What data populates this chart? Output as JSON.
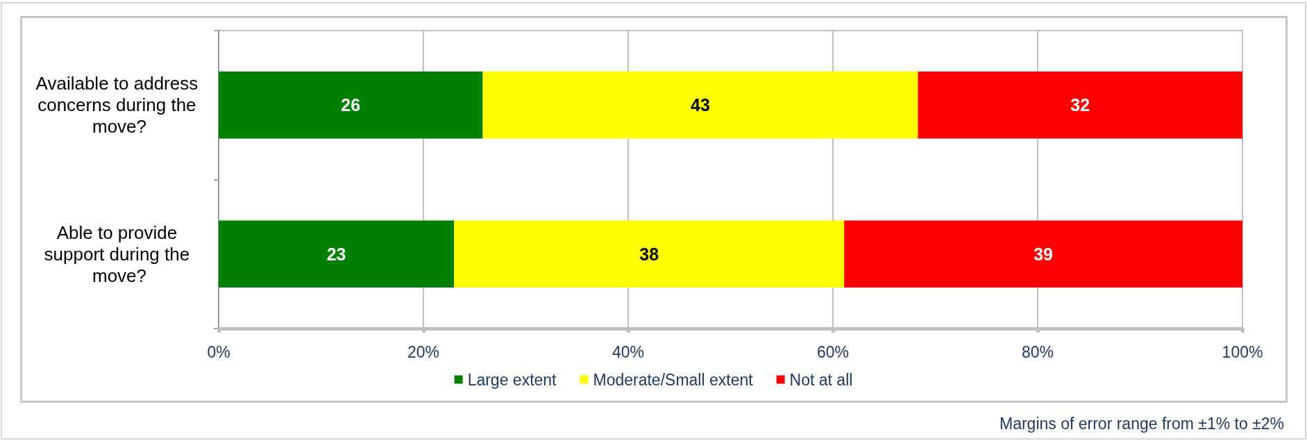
{
  "chart_data": {
    "type": "bar",
    "orientation": "horizontal",
    "stacked": true,
    "categories": [
      "Available to address concerns during the move?",
      "Able to provide support during the move?"
    ],
    "series": [
      {
        "name": "Large extent",
        "color": "#008000",
        "values": [
          25.8,
          23.0
        ],
        "value_labels": [
          "26",
          "23"
        ]
      },
      {
        "name": "Moderate/Small extent",
        "color": "#ffff00",
        "values": [
          42.5,
          38.1
        ],
        "value_labels": [
          "43",
          "38"
        ]
      },
      {
        "name": "Not at all",
        "color": "#ff0000",
        "values": [
          31.7,
          38.9
        ],
        "value_labels": [
          "32",
          "39"
        ]
      }
    ],
    "xlim": [
      0,
      100
    ],
    "xticks": [
      {
        "value": 0,
        "label": "0%"
      },
      {
        "value": 20,
        "label": "20%"
      },
      {
        "value": 40,
        "label": "40%"
      },
      {
        "value": 60,
        "label": "60%"
      },
      {
        "value": 80,
        "label": "80%"
      },
      {
        "value": 100,
        "label": "100%"
      }
    ],
    "grid": "x",
    "legend": "bottom",
    "annotations": [
      "Margins of error range from ±1% to ±2%"
    ]
  }
}
